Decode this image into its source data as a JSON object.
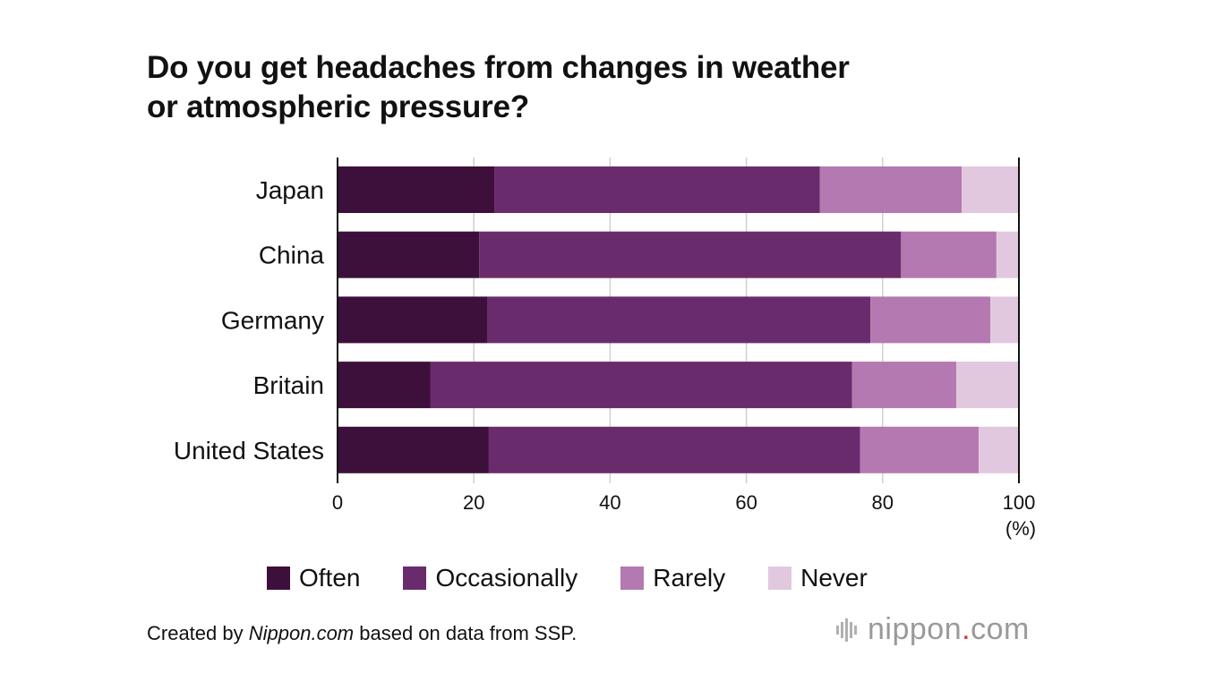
{
  "chart_data": {
    "type": "bar",
    "orientation": "horizontal",
    "stacked": true,
    "title_lines": [
      "Do you get headaches from changes in weather",
      "or atmospheric pressure?"
    ],
    "categories": [
      "Japan",
      "China",
      "Germany",
      "Britain",
      "United States"
    ],
    "series": [
      {
        "name": "Often",
        "color": "#3d103b",
        "values": [
          23.0,
          20.8,
          22.0,
          13.6,
          22.2
        ]
      },
      {
        "name": "Occasionally",
        "color": "#6a2b6c",
        "values": [
          47.8,
          61.9,
          56.2,
          61.9,
          54.5
        ]
      },
      {
        "name": "Rarely",
        "color": "#b479b0",
        "values": [
          20.8,
          14.0,
          17.6,
          15.3,
          17.4
        ]
      },
      {
        "name": "Never",
        "color": "#e2c8df",
        "values": [
          8.4,
          3.3,
          4.2,
          9.2,
          5.9
        ]
      }
    ],
    "xlim": [
      0,
      100
    ],
    "xticks": [
      0,
      20,
      40,
      60,
      80,
      100
    ],
    "xunit": "(%)",
    "grid": true,
    "legend": "bottom"
  },
  "footer": {
    "credit_prefix": "Created by ",
    "credit_italic": "Nippon.com",
    "credit_suffix": " based on data from SSP.",
    "brand_name": "nippon",
    "brand_dot": ".",
    "brand_tld": "com"
  }
}
